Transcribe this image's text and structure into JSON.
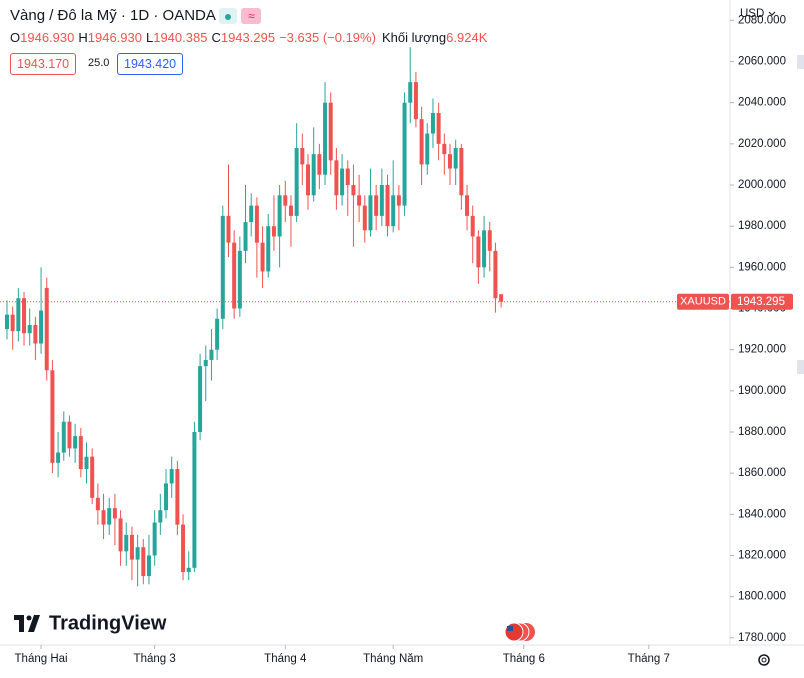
{
  "header": {
    "title": "Vàng / Đô la Mỹ · 1D · OANDA",
    "legend_items": [
      {
        "label": "O",
        "value": "1946.930"
      },
      {
        "label": "H",
        "value": "1946.930"
      },
      {
        "label": "L",
        "value": "1940.385"
      },
      {
        "label": "C",
        "value": "1943.295"
      }
    ],
    "change": "−3.635 (−0.19%)",
    "volume_label": "Khối lượng",
    "volume": "6.924K",
    "bid": "1943.170",
    "spread": "25.0",
    "ask": "1943.420",
    "currency": "USD",
    "logo": "TradingView"
  },
  "chart_data": {
    "type": "candlestick",
    "up_color": "#26a69a",
    "down_color": "#ef5350",
    "open": [
      1930,
      1937,
      1929,
      1945,
      1928,
      1932,
      1923,
      1950,
      1910,
      1865,
      1870,
      1885,
      1872,
      1878,
      1862,
      1868,
      1848,
      1842,
      1835,
      1843,
      1838,
      1822,
      1830,
      1818,
      1824,
      1810,
      1820,
      1836,
      1842,
      1855,
      1862,
      1835,
      1812,
      1814,
      1880,
      1912,
      1915,
      1920,
      1935,
      1985,
      1972,
      1940,
      1968,
      1982,
      1990,
      1972,
      1958,
      1980,
      1975,
      1995,
      1990,
      1985,
      2018,
      2010,
      1995,
      2015,
      2005,
      2040,
      2012,
      1995,
      2008,
      2000,
      1995,
      1990,
      1978,
      1995,
      1985,
      2000,
      1980,
      1995,
      1990,
      2040,
      2050,
      2032,
      2010,
      2025,
      2035,
      2020,
      2015,
      2008,
      2018,
      1995,
      1985,
      1975,
      1960,
      1978,
      1968,
      1946.93
    ],
    "high": [
      1944,
      1941,
      1950,
      1948,
      1940,
      1936,
      1960,
      1955,
      1915,
      1880,
      1890,
      1888,
      1884,
      1882,
      1875,
      1872,
      1855,
      1850,
      1848,
      1850,
      1842,
      1836,
      1834,
      1830,
      1828,
      1830,
      1842,
      1850,
      1862,
      1868,
      1866,
      1840,
      1822,
      1885,
      1918,
      1922,
      1930,
      1940,
      1990,
      2010,
      1978,
      1975,
      2000,
      1996,
      1994,
      1980,
      1986,
      1995,
      2000,
      2002,
      1995,
      2030,
      2025,
      2015,
      2028,
      2020,
      2050,
      2045,
      2018,
      2015,
      2012,
      2010,
      2005,
      1995,
      2008,
      2000,
      2008,
      2005,
      2012,
      2000,
      2045,
      2067,
      2055,
      2038,
      2030,
      2042,
      2040,
      2025,
      2020,
      2022,
      2020,
      2000,
      1990,
      1978,
      1985,
      1982,
      1972,
      1946.93
    ],
    "low": [
      1925,
      1920,
      1924,
      1922,
      1922,
      1915,
      1918,
      1905,
      1860,
      1858,
      1866,
      1868,
      1865,
      1858,
      1855,
      1845,
      1835,
      1828,
      1830,
      1825,
      1815,
      1815,
      1808,
      1805,
      1806,
      1806,
      1815,
      1830,
      1838,
      1848,
      1830,
      1808,
      1808,
      1812,
      1876,
      1895,
      1905,
      1915,
      1930,
      1965,
      1935,
      1936,
      1962,
      1975,
      1955,
      1950,
      1955,
      1968,
      1960,
      1982,
      1970,
      1982,
      2000,
      1988,
      1992,
      1998,
      2000,
      2005,
      1988,
      1990,
      1985,
      1970,
      1982,
      1972,
      1975,
      1978,
      1980,
      1975,
      1977,
      1978,
      1985,
      2030,
      2028,
      2000,
      2005,
      2018,
      2012,
      2005,
      2000,
      2000,
      1988,
      1978,
      1962,
      1952,
      1955,
      1958,
      1938,
      1940.385
    ],
    "close": [
      1937,
      1929,
      1945,
      1928,
      1932,
      1923,
      1939,
      1910,
      1865,
      1870,
      1885,
      1872,
      1878,
      1862,
      1868,
      1848,
      1842,
      1835,
      1843,
      1838,
      1822,
      1830,
      1818,
      1824,
      1810,
      1820,
      1836,
      1842,
      1855,
      1862,
      1835,
      1812,
      1814,
      1880,
      1912,
      1915,
      1920,
      1935,
      1985,
      1972,
      1940,
      1968,
      1982,
      1990,
      1972,
      1958,
      1980,
      1975,
      1995,
      1990,
      1985,
      2018,
      2010,
      1995,
      2015,
      2005,
      2040,
      2012,
      1995,
      2008,
      2000,
      1995,
      1990,
      1978,
      1995,
      1985,
      2000,
      1980,
      1995,
      1990,
      2040,
      2050,
      2032,
      2010,
      2025,
      2035,
      2020,
      2015,
      2008,
      2018,
      1995,
      1985,
      1975,
      1960,
      1978,
      1968,
      1945,
      1943.295
    ],
    "xlim": [
      -1.23,
      127.3
    ],
    "xticks": [
      {
        "value": 6,
        "label": "Tháng Hai"
      },
      {
        "value": 26,
        "label": "Tháng 3"
      },
      {
        "value": 49,
        "label": "Tháng 4"
      },
      {
        "value": 68,
        "label": "Tháng Năm"
      },
      {
        "value": 91,
        "label": "Tháng 6"
      },
      {
        "value": 113,
        "label": "Tháng 7"
      }
    ],
    "ylim": [
      2089.9,
      1776.5
    ],
    "yticks": [
      {
        "value": 2080,
        "label": "2080.000"
      },
      {
        "value": 2060,
        "label": "2060.000"
      },
      {
        "value": 2040,
        "label": "2040.000"
      },
      {
        "value": 2020,
        "label": "2020.000"
      },
      {
        "value": 2000,
        "label": "2000.000"
      },
      {
        "value": 1980,
        "label": "1980.000"
      },
      {
        "value": 1960,
        "label": "1960.000"
      },
      {
        "value": 1940,
        "label": "1940.000"
      },
      {
        "value": 1920,
        "label": "1920.000"
      },
      {
        "value": 1900,
        "label": "1900.000"
      },
      {
        "value": 1880,
        "label": "1880.000"
      },
      {
        "value": 1860,
        "label": "1860.000"
      },
      {
        "value": 1840,
        "label": "1840.000"
      },
      {
        "value": 1820,
        "label": "1820.000"
      },
      {
        "value": 1800,
        "label": "1800.000"
      },
      {
        "value": 1780,
        "label": "1780.000"
      }
    ],
    "price_label": {
      "symbol": "XAUUSD",
      "value": 1943.295
    }
  }
}
